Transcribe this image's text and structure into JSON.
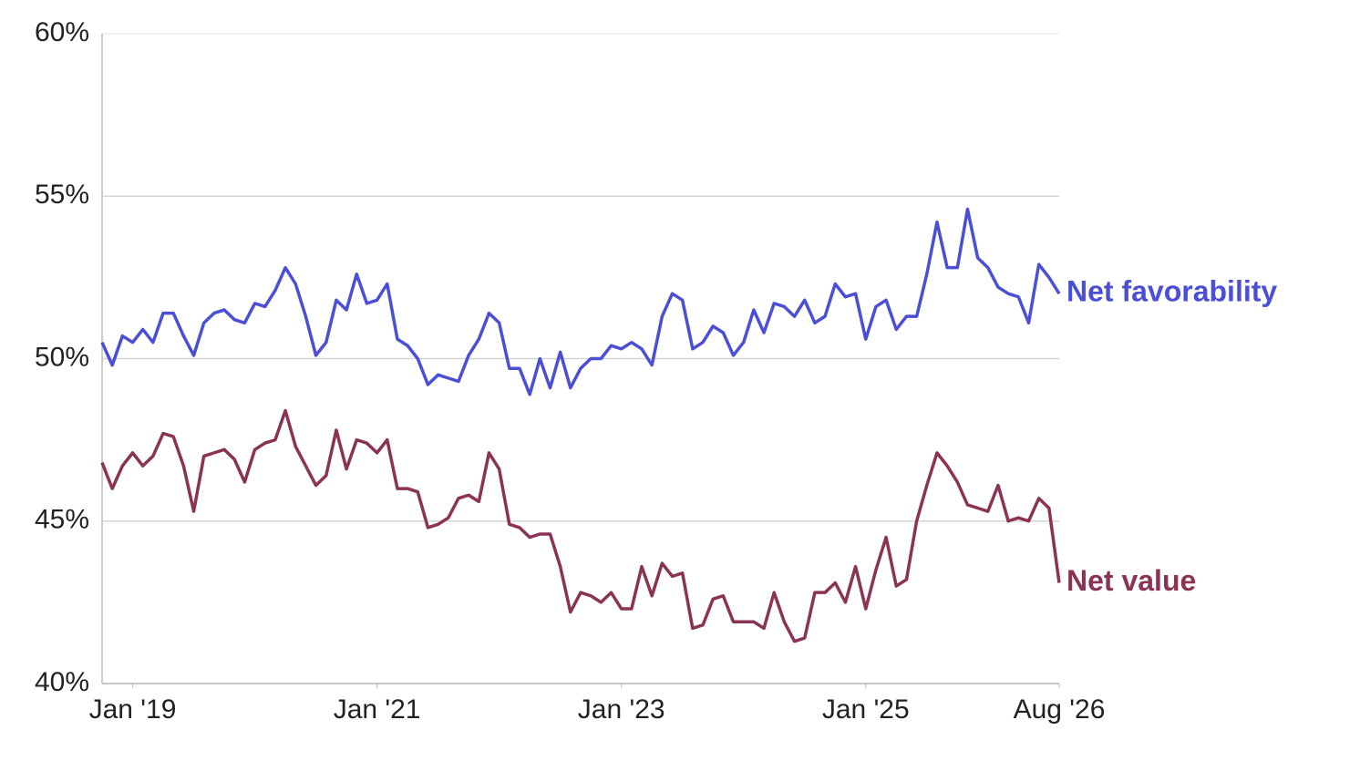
{
  "chart_data": {
    "type": "line",
    "x": [
      "2018-10",
      "2018-11",
      "2018-12",
      "2019-01",
      "2019-02",
      "2019-03",
      "2019-04",
      "2019-05",
      "2019-06",
      "2019-07",
      "2019-08",
      "2019-09",
      "2019-10",
      "2019-11",
      "2019-12",
      "2020-01",
      "2020-02",
      "2020-03",
      "2020-04",
      "2020-05",
      "2020-06",
      "2020-07",
      "2020-08",
      "2020-09",
      "2020-10",
      "2020-11",
      "2020-12",
      "2021-01",
      "2021-02",
      "2021-03",
      "2021-04",
      "2021-05",
      "2021-06",
      "2021-07",
      "2021-08",
      "2021-09",
      "2021-10",
      "2021-11",
      "2021-12",
      "2022-01",
      "2022-02",
      "2022-03",
      "2022-04",
      "2022-05",
      "2022-06",
      "2022-07",
      "2022-08",
      "2022-09",
      "2022-10",
      "2022-11",
      "2022-12",
      "2023-01",
      "2023-02",
      "2023-03",
      "2023-04",
      "2023-05",
      "2023-06",
      "2023-07",
      "2023-08",
      "2023-09",
      "2023-10",
      "2023-11",
      "2023-12",
      "2024-01",
      "2024-02",
      "2024-03",
      "2024-04",
      "2024-05",
      "2024-06",
      "2024-07",
      "2024-08",
      "2024-09",
      "2024-10",
      "2024-11",
      "2024-12",
      "2025-01",
      "2025-02",
      "2025-03",
      "2025-04",
      "2025-05",
      "2025-06",
      "2025-07",
      "2025-08",
      "2025-09",
      "2025-10",
      "2025-11",
      "2025-12",
      "2026-01",
      "2026-02",
      "2026-03",
      "2026-04",
      "2026-05",
      "2026-06",
      "2026-07",
      "2026-08"
    ],
    "series": [
      {
        "name": "Net favorability",
        "color": "#4b4fd6",
        "values": [
          50.5,
          49.8,
          50.7,
          50.5,
          50.9,
          50.5,
          51.4,
          51.4,
          50.7,
          50.1,
          51.1,
          51.4,
          51.5,
          51.2,
          51.1,
          51.7,
          51.6,
          52.1,
          52.8,
          52.3,
          51.3,
          50.1,
          50.5,
          51.8,
          51.5,
          52.6,
          51.7,
          51.8,
          52.3,
          50.6,
          50.4,
          50.0,
          49.2,
          49.5,
          49.4,
          49.3,
          50.1,
          50.6,
          51.4,
          51.1,
          49.7,
          49.7,
          48.9,
          50.0,
          49.1,
          50.2,
          49.1,
          49.7,
          50.0,
          50.0,
          50.4,
          50.3,
          50.5,
          50.3,
          49.8,
          51.3,
          52.0,
          51.8,
          50.3,
          50.5,
          51.0,
          50.8,
          50.1,
          50.5,
          51.5,
          50.8,
          51.7,
          51.6,
          51.3,
          51.8,
          51.1,
          51.3,
          52.3,
          51.9,
          52.0,
          50.6,
          51.6,
          51.8,
          50.9,
          51.3,
          51.3,
          52.6,
          54.2,
          52.8,
          52.8,
          54.6,
          53.1,
          52.8,
          52.2,
          52.0,
          51.9,
          51.1,
          52.9,
          52.5,
          52.0
        ]
      },
      {
        "name": "Net value",
        "color": "#8b3352",
        "values": [
          46.8,
          46.0,
          46.7,
          47.1,
          46.7,
          47.0,
          47.7,
          47.6,
          46.7,
          45.3,
          47.0,
          47.1,
          47.2,
          46.9,
          46.2,
          47.2,
          47.4,
          47.5,
          48.4,
          47.3,
          46.7,
          46.1,
          46.4,
          47.8,
          46.6,
          47.5,
          47.4,
          47.1,
          47.5,
          46.0,
          46.0,
          45.9,
          44.8,
          44.9,
          45.1,
          45.7,
          45.8,
          45.6,
          47.1,
          46.6,
          44.9,
          44.8,
          44.5,
          44.6,
          44.6,
          43.6,
          42.2,
          42.8,
          42.7,
          42.5,
          42.8,
          42.3,
          42.3,
          43.6,
          42.7,
          43.7,
          43.3,
          43.4,
          41.7,
          41.8,
          42.6,
          42.7,
          41.9,
          41.9,
          41.9,
          41.7,
          42.8,
          41.9,
          41.3,
          41.4,
          42.8,
          42.8,
          43.1,
          42.5,
          43.6,
          42.3,
          43.5,
          44.5,
          43.0,
          43.2,
          45.0,
          46.1,
          47.1,
          46.7,
          46.2,
          45.5,
          45.4,
          45.3,
          46.1,
          45.0,
          45.1,
          45.0,
          45.7,
          45.4,
          43.1
        ]
      }
    ],
    "xlim": [
      "2018-10",
      "2026-08"
    ],
    "xticks": [
      {
        "value": "2019-01",
        "label": "Jan '19"
      },
      {
        "value": "2021-01",
        "label": "Jan '21"
      },
      {
        "value": "2023-01",
        "label": "Jan '23"
      },
      {
        "value": "2025-01",
        "label": "Jan '25"
      },
      {
        "value": "2026-08",
        "label": "Aug '26"
      }
    ],
    "ylim": [
      40,
      60
    ],
    "yticks": [
      {
        "value": 40,
        "label": "40%"
      },
      {
        "value": 45,
        "label": "45%"
      },
      {
        "value": 50,
        "label": "50%"
      },
      {
        "value": 55,
        "label": "55%"
      },
      {
        "value": 60,
        "label": "60%"
      }
    ],
    "grid": true
  }
}
